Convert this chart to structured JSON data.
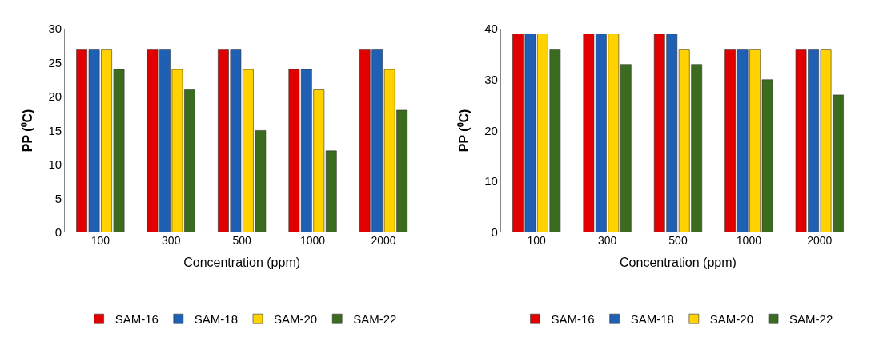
{
  "chart_data": [
    {
      "type": "bar",
      "xlabel": "Concentration (ppm)",
      "ylabel": "PP (⁰C)",
      "categories": [
        "100",
        "300",
        "500",
        "1000",
        "2000"
      ],
      "series": [
        {
          "name": "SAM-16",
          "color": "#e00000",
          "values": [
            27,
            27,
            27,
            24,
            27
          ]
        },
        {
          "name": "SAM-18",
          "color": "#1f5fb4",
          "values": [
            27,
            27,
            27,
            24,
            27
          ]
        },
        {
          "name": "SAM-20",
          "color": "#ffd200",
          "values": [
            27,
            24,
            24,
            21,
            24
          ]
        },
        {
          "name": "SAM-22",
          "color": "#3b6b1f",
          "values": [
            24,
            21,
            15,
            12,
            18
          ]
        }
      ],
      "ylim": [
        0,
        30
      ],
      "yticks": [
        0,
        5,
        10,
        15,
        20,
        25,
        30
      ],
      "grid": false,
      "legend": "bottom"
    },
    {
      "type": "bar",
      "xlabel": "Concentration (ppm)",
      "ylabel": "PP (⁰C)",
      "categories": [
        "100",
        "300",
        "500",
        "1000",
        "2000"
      ],
      "series": [
        {
          "name": "SAM-16",
          "color": "#e00000",
          "values": [
            39,
            39,
            39,
            36,
            36
          ]
        },
        {
          "name": "SAM-18",
          "color": "#1f5fb4",
          "values": [
            39,
            39,
            39,
            36,
            36
          ]
        },
        {
          "name": "SAM-20",
          "color": "#ffd200",
          "values": [
            39,
            39,
            36,
            36,
            36
          ]
        },
        {
          "name": "SAM-22",
          "color": "#3b6b1f",
          "values": [
            36,
            33,
            33,
            30,
            27
          ]
        }
      ],
      "ylim": [
        0,
        40
      ],
      "yticks": [
        0,
        10,
        20,
        30,
        40
      ],
      "grid": false,
      "legend": "bottom"
    }
  ]
}
